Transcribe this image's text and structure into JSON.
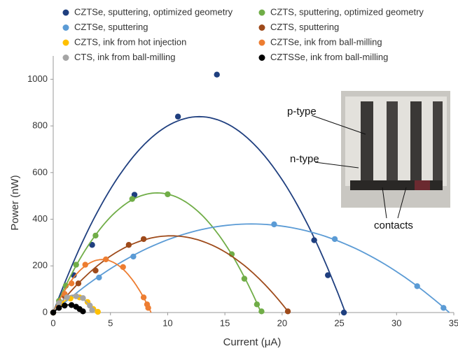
{
  "chart_data": {
    "type": "scatter",
    "x_label": "Current (μA)",
    "y_label": "Power (nW)",
    "xlim": [
      0,
      35
    ],
    "xticks": [
      0,
      5,
      10,
      15,
      20,
      25,
      30,
      35
    ],
    "ylim": [
      0,
      1100
    ],
    "yticks": [
      0,
      200,
      400,
      600,
      800,
      1000
    ],
    "fit": "quadratic",
    "series": [
      {
        "name": "CZTSe, sputtering, optimized geometry",
        "color": "#1f3f7f",
        "x": [
          0,
          1.8,
          3.4,
          7.1,
          10.9,
          14.3,
          22.8,
          24,
          25.4
        ],
        "values": [
          0,
          160,
          290,
          505,
          840,
          1020,
          310,
          160,
          0
        ]
      },
      {
        "name": "CZTS, sputtering, optimized geometry",
        "color": "#70ad47",
        "x": [
          0,
          0.5,
          1.1,
          2,
          3.7,
          6.9,
          10,
          15.6,
          16.7,
          17.8,
          18.2
        ],
        "values": [
          0,
          50,
          115,
          205,
          330,
          487,
          507,
          250,
          145,
          35,
          5
        ]
      },
      {
        "name": "CZTSe, sputtering",
        "color": "#5b9bd5",
        "x": [
          0,
          4,
          7,
          19.3,
          24.6,
          31.8,
          34.1
        ],
        "values": [
          0,
          150,
          240,
          378,
          315,
          113,
          20
        ]
      },
      {
        "name": "CZTS, sputtering",
        "color": "#9e4a1a",
        "x": [
          0,
          1,
          2.2,
          3.7,
          6.6,
          7.9,
          20.5
        ],
        "values": [
          0,
          70,
          125,
          180,
          290,
          315,
          5
        ]
      },
      {
        "name": "CZTS, ink from hot injection",
        "color": "#ffc000",
        "x": [
          0,
          0.7,
          1.5,
          2.3,
          3,
          3.5,
          3.9
        ],
        "values": [
          0,
          40,
          60,
          65,
          45,
          15,
          3
        ]
      },
      {
        "name": "CZTSe, ink from ball-milling",
        "color": "#ed7d31",
        "x": [
          0,
          1,
          1.6,
          2.8,
          4.6,
          6.1,
          7.9,
          8.2,
          8.3
        ],
        "values": [
          0,
          80,
          125,
          205,
          228,
          195,
          65,
          35,
          20
        ]
      },
      {
        "name": "CTS, ink from ball-milling",
        "color": "#a5a5a5",
        "x": [
          0,
          0.5,
          1.2,
          2,
          2.6,
          3.2,
          3.4
        ],
        "values": [
          0,
          40,
          65,
          70,
          62,
          30,
          10
        ]
      },
      {
        "name": "CZTSSe, ink from ball-milling",
        "color": "#000000",
        "x": [
          0,
          0.5,
          1,
          1.6,
          2,
          2.3,
          2.6
        ],
        "values": [
          0,
          20,
          30,
          32,
          25,
          15,
          5
        ]
      }
    ],
    "inset": {
      "labels": [
        "p-type",
        "n-type",
        "contacts"
      ]
    }
  }
}
